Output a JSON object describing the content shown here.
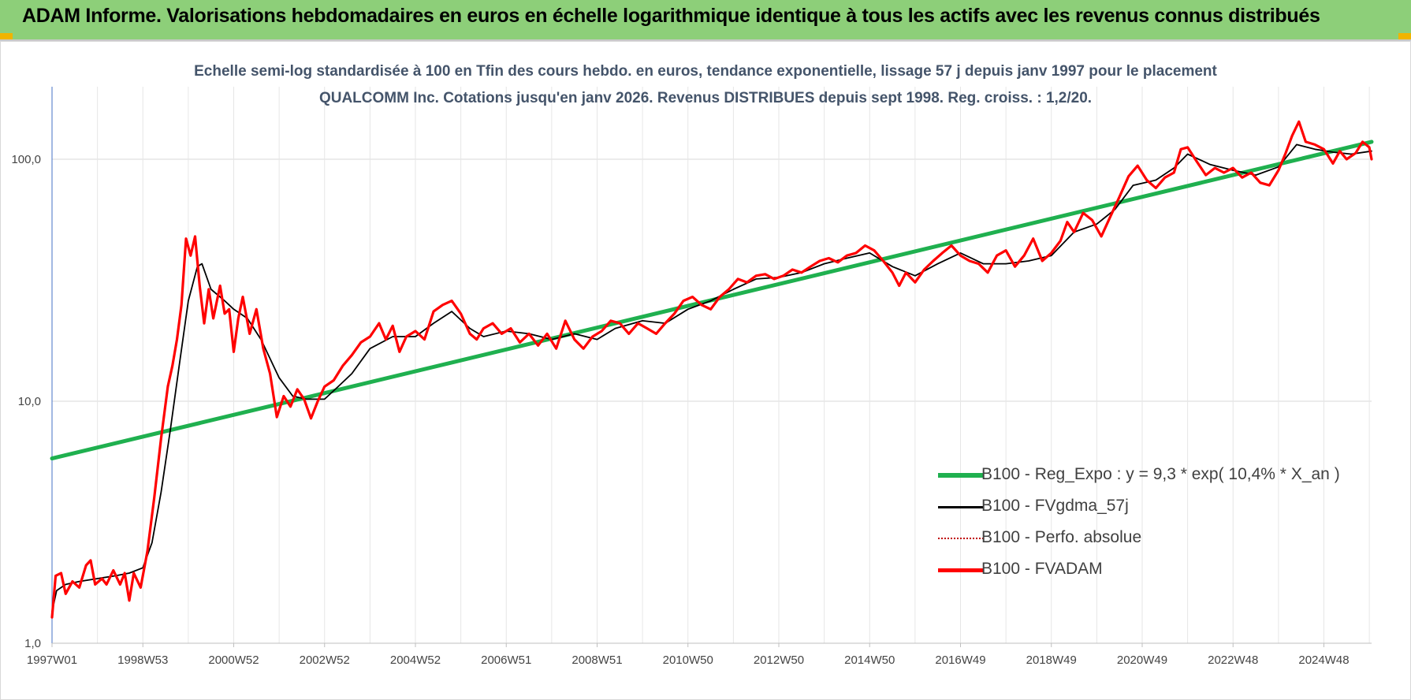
{
  "header": {
    "title": "ADAM Informe. Valorisations hebdomadaires en euros en échelle logarithmique identique à tous les actifs avec les revenus connus distribués"
  },
  "chart_data": {
    "type": "line",
    "title": "Echelle semi-log standardisée à 100 en Tfin des cours hebdo. en euros, tendance exponentielle, lissage 57 j depuis janv 1997 pour le placement QUALCOMM Inc. Cotations jusqu'en janv 2026. Revenus DISTRIBUES depuis sept 1998. Reg. croiss. : 1,2/20.",
    "xlabel": "",
    "ylabel": "",
    "y_scale": "log",
    "ylim": [
      1,
      200
    ],
    "y_ticks": [
      {
        "value": 1,
        "label": "1,0"
      },
      {
        "value": 10,
        "label": "10,0"
      },
      {
        "value": 100,
        "label": "100,0"
      }
    ],
    "x_ticks": [
      "1997W01",
      "1998W53",
      "2000W52",
      "2002W52",
      "2004W52",
      "2006W51",
      "2008W51",
      "2010W50",
      "2012W50",
      "2014W50",
      "2016W49",
      "2018W49",
      "2020W49",
      "2022W48",
      "2024W48"
    ],
    "x_tick_years": [
      1997.0,
      1999.0,
      2001.0,
      2003.0,
      2005.0,
      2007.0,
      2009.0,
      2011.0,
      2013.0,
      2015.0,
      2017.0,
      2019.0,
      2021.0,
      2023.0,
      2025.0
    ],
    "xlim": [
      1997.0,
      2026.05
    ],
    "grid": true,
    "legend_position": "bottom-right",
    "series": [
      {
        "name": "B100 - Reg_Expo : y = 9,3 * exp( 10,4% *  X_an )",
        "color": "#1fb04f",
        "style": "solid-thick",
        "points": [
          [
            1997.0,
            5.8
          ],
          [
            2026.05,
            118
          ]
        ]
      },
      {
        "name": "B100 - FVgdma_57j",
        "color": "#000000",
        "style": "solid-thin",
        "points": [
          [
            1997.0,
            1.35
          ],
          [
            1997.1,
            1.65
          ],
          [
            1997.3,
            1.75
          ],
          [
            1997.6,
            1.8
          ],
          [
            1998.0,
            1.85
          ],
          [
            1998.4,
            1.9
          ],
          [
            1998.7,
            1.95
          ],
          [
            1999.0,
            2.05
          ],
          [
            1999.2,
            2.6
          ],
          [
            1999.4,
            4.2
          ],
          [
            1999.6,
            7.5
          ],
          [
            1999.8,
            14
          ],
          [
            2000.0,
            26
          ],
          [
            2000.2,
            36
          ],
          [
            2000.3,
            37
          ],
          [
            2000.5,
            29
          ],
          [
            2000.8,
            26
          ],
          [
            2001.0,
            24
          ],
          [
            2001.3,
            22
          ],
          [
            2001.6,
            18
          ],
          [
            2002.0,
            12.5
          ],
          [
            2002.3,
            10.5
          ],
          [
            2002.6,
            10.2
          ],
          [
            2003.0,
            10.2
          ],
          [
            2003.3,
            11.5
          ],
          [
            2003.6,
            13
          ],
          [
            2004.0,
            16.5
          ],
          [
            2004.5,
            18.5
          ],
          [
            2005.0,
            18.5
          ],
          [
            2005.4,
            21
          ],
          [
            2005.8,
            23.5
          ],
          [
            2006.2,
            20
          ],
          [
            2006.5,
            18.5
          ],
          [
            2007.0,
            19.5
          ],
          [
            2007.5,
            19
          ],
          [
            2008.0,
            18
          ],
          [
            2008.5,
            19
          ],
          [
            2009.0,
            18
          ],
          [
            2009.4,
            20
          ],
          [
            2010.0,
            21.5
          ],
          [
            2010.5,
            21
          ],
          [
            2011.0,
            24
          ],
          [
            2011.5,
            26
          ],
          [
            2012.0,
            29
          ],
          [
            2012.5,
            32
          ],
          [
            2013.0,
            32.5
          ],
          [
            2013.5,
            34
          ],
          [
            2014.0,
            37
          ],
          [
            2014.5,
            39
          ],
          [
            2015.0,
            41
          ],
          [
            2015.5,
            36
          ],
          [
            2016.0,
            33
          ],
          [
            2016.5,
            37
          ],
          [
            2017.0,
            41
          ],
          [
            2017.5,
            37
          ],
          [
            2018.0,
            37
          ],
          [
            2018.5,
            38
          ],
          [
            2019.0,
            40
          ],
          [
            2019.5,
            50
          ],
          [
            2020.0,
            54
          ],
          [
            2020.4,
            62
          ],
          [
            2020.8,
            78
          ],
          [
            2021.3,
            82
          ],
          [
            2021.7,
            92
          ],
          [
            2022.0,
            105
          ],
          [
            2022.5,
            95
          ],
          [
            2023.0,
            90
          ],
          [
            2023.5,
            86
          ],
          [
            2024.0,
            93
          ],
          [
            2024.4,
            115
          ],
          [
            2024.8,
            110
          ],
          [
            2025.2,
            107
          ],
          [
            2025.6,
            105
          ],
          [
            2026.05,
            108
          ]
        ]
      },
      {
        "name": "B100 - Perfo. absolue",
        "color": "#c00000",
        "style": "dotted",
        "points": []
      },
      {
        "name": "B100 - FVADAM",
        "color": "#ff0000",
        "style": "solid-thick",
        "points": [
          [
            1997.0,
            1.28
          ],
          [
            1997.08,
            1.9
          ],
          [
            1997.2,
            1.95
          ],
          [
            1997.3,
            1.6
          ],
          [
            1997.45,
            1.8
          ],
          [
            1997.6,
            1.7
          ],
          [
            1997.75,
            2.1
          ],
          [
            1997.85,
            2.2
          ],
          [
            1997.95,
            1.75
          ],
          [
            1998.1,
            1.85
          ],
          [
            1998.2,
            1.75
          ],
          [
            1998.35,
            2.0
          ],
          [
            1998.5,
            1.75
          ],
          [
            1998.6,
            1.95
          ],
          [
            1998.7,
            1.5
          ],
          [
            1998.8,
            1.95
          ],
          [
            1998.95,
            1.7
          ],
          [
            1999.1,
            2.4
          ],
          [
            1999.25,
            4.0
          ],
          [
            1999.4,
            7.0
          ],
          [
            1999.55,
            11.5
          ],
          [
            1999.65,
            14
          ],
          [
            1999.75,
            18
          ],
          [
            1999.85,
            25
          ],
          [
            1999.95,
            47
          ],
          [
            2000.05,
            40
          ],
          [
            2000.15,
            48
          ],
          [
            2000.25,
            30
          ],
          [
            2000.35,
            21
          ],
          [
            2000.45,
            29
          ],
          [
            2000.55,
            22
          ],
          [
            2000.7,
            30
          ],
          [
            2000.8,
            23
          ],
          [
            2000.9,
            24
          ],
          [
            2001.0,
            16
          ],
          [
            2001.1,
            22
          ],
          [
            2001.2,
            27
          ],
          [
            2001.35,
            19
          ],
          [
            2001.5,
            24
          ],
          [
            2001.65,
            16.5
          ],
          [
            2001.8,
            13
          ],
          [
            2001.95,
            8.6
          ],
          [
            2002.1,
            10.5
          ],
          [
            2002.25,
            9.5
          ],
          [
            2002.4,
            11.2
          ],
          [
            2002.55,
            10.2
          ],
          [
            2002.7,
            8.5
          ],
          [
            2002.85,
            10
          ],
          [
            2003.0,
            11.5
          ],
          [
            2003.2,
            12.2
          ],
          [
            2003.4,
            14
          ],
          [
            2003.6,
            15.5
          ],
          [
            2003.8,
            17.5
          ],
          [
            2004.0,
            18.5
          ],
          [
            2004.2,
            21
          ],
          [
            2004.35,
            18
          ],
          [
            2004.5,
            20.5
          ],
          [
            2004.65,
            16
          ],
          [
            2004.8,
            18.5
          ],
          [
            2005.0,
            19.5
          ],
          [
            2005.2,
            18
          ],
          [
            2005.4,
            23.5
          ],
          [
            2005.6,
            25
          ],
          [
            2005.8,
            26
          ],
          [
            2006.0,
            23
          ],
          [
            2006.2,
            19
          ],
          [
            2006.35,
            18
          ],
          [
            2006.5,
            20
          ],
          [
            2006.7,
            21
          ],
          [
            2006.9,
            19
          ],
          [
            2007.1,
            20
          ],
          [
            2007.3,
            17.5
          ],
          [
            2007.5,
            19
          ],
          [
            2007.7,
            17
          ],
          [
            2007.9,
            19
          ],
          [
            2008.1,
            16.5
          ],
          [
            2008.3,
            21.5
          ],
          [
            2008.5,
            18
          ],
          [
            2008.7,
            16.5
          ],
          [
            2008.9,
            18.5
          ],
          [
            2009.1,
            19.5
          ],
          [
            2009.3,
            21.5
          ],
          [
            2009.5,
            21
          ],
          [
            2009.7,
            19
          ],
          [
            2009.9,
            21
          ],
          [
            2010.1,
            20
          ],
          [
            2010.3,
            19
          ],
          [
            2010.5,
            21
          ],
          [
            2010.7,
            23
          ],
          [
            2010.9,
            26
          ],
          [
            2011.1,
            27
          ],
          [
            2011.3,
            25
          ],
          [
            2011.5,
            24
          ],
          [
            2011.7,
            27
          ],
          [
            2011.9,
            29
          ],
          [
            2012.1,
            32
          ],
          [
            2012.3,
            31
          ],
          [
            2012.5,
            33
          ],
          [
            2012.7,
            33.5
          ],
          [
            2012.9,
            32
          ],
          [
            2013.1,
            33
          ],
          [
            2013.3,
            35
          ],
          [
            2013.5,
            34
          ],
          [
            2013.7,
            36
          ],
          [
            2013.9,
            38
          ],
          [
            2014.1,
            39
          ],
          [
            2014.3,
            37.5
          ],
          [
            2014.5,
            40
          ],
          [
            2014.7,
            41
          ],
          [
            2014.9,
            44
          ],
          [
            2015.1,
            42
          ],
          [
            2015.3,
            38
          ],
          [
            2015.5,
            34
          ],
          [
            2015.65,
            30
          ],
          [
            2015.8,
            34
          ],
          [
            2016.0,
            31
          ],
          [
            2016.2,
            35
          ],
          [
            2016.4,
            38
          ],
          [
            2016.6,
            41
          ],
          [
            2016.8,
            44
          ],
          [
            2017.0,
            40
          ],
          [
            2017.2,
            38
          ],
          [
            2017.4,
            37
          ],
          [
            2017.6,
            34
          ],
          [
            2017.8,
            40
          ],
          [
            2018.0,
            42
          ],
          [
            2018.2,
            36
          ],
          [
            2018.4,
            40
          ],
          [
            2018.6,
            47
          ],
          [
            2018.8,
            38
          ],
          [
            2019.0,
            41
          ],
          [
            2019.2,
            46
          ],
          [
            2019.35,
            55
          ],
          [
            2019.5,
            50
          ],
          [
            2019.7,
            60
          ],
          [
            2019.9,
            56
          ],
          [
            2020.1,
            48
          ],
          [
            2020.3,
            58
          ],
          [
            2020.5,
            70
          ],
          [
            2020.7,
            85
          ],
          [
            2020.9,
            94
          ],
          [
            2021.1,
            82
          ],
          [
            2021.3,
            76
          ],
          [
            2021.5,
            84
          ],
          [
            2021.7,
            88
          ],
          [
            2021.85,
            110
          ],
          [
            2022.0,
            112
          ],
          [
            2022.2,
            98
          ],
          [
            2022.4,
            86
          ],
          [
            2022.6,
            92
          ],
          [
            2022.8,
            88
          ],
          [
            2023.0,
            92
          ],
          [
            2023.2,
            84
          ],
          [
            2023.4,
            88
          ],
          [
            2023.6,
            80
          ],
          [
            2023.8,
            78
          ],
          [
            2024.0,
            90
          ],
          [
            2024.15,
            105
          ],
          [
            2024.3,
            125
          ],
          [
            2024.45,
            143
          ],
          [
            2024.6,
            118
          ],
          [
            2024.8,
            115
          ],
          [
            2025.0,
            110
          ],
          [
            2025.2,
            96
          ],
          [
            2025.35,
            108
          ],
          [
            2025.5,
            100
          ],
          [
            2025.7,
            106
          ],
          [
            2025.85,
            118
          ],
          [
            2026.0,
            112
          ],
          [
            2026.05,
            100
          ]
        ]
      }
    ]
  }
}
